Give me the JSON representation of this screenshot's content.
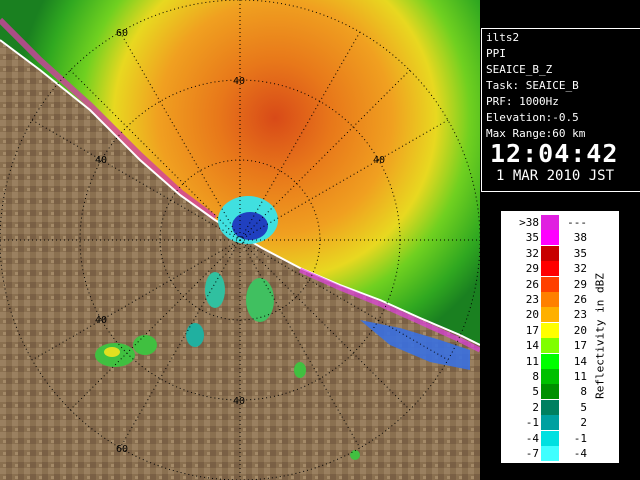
{
  "radar": {
    "range_ring_labels": [
      "40",
      "40",
      "40",
      "40",
      "40",
      "60",
      "60"
    ],
    "colors": {
      "land": "#8a7050",
      "sea_background": "#5aa838",
      "echo_core": "#e87a10",
      "coastline": "#ffffff"
    }
  },
  "info": {
    "site": "ilts2",
    "mode": "PPI",
    "product": "SEAICE_B_Z",
    "task": "Task: SEAICE_B",
    "prf": "PRF: 1000Hz",
    "elevation": "Elevation:-0.5",
    "max_range": "Max Range:60 km",
    "time": "12:04:42",
    "date": " 1 MAR 2010 JST"
  },
  "legend": {
    "title": "Reflectivity in dBZ",
    "rows": [
      {
        "min": ">38",
        "max": "---",
        "color": "#e020e0"
      },
      {
        "min": "35",
        "max": "38",
        "color": "#ff00ff"
      },
      {
        "min": "32",
        "max": "35",
        "color": "#c80000"
      },
      {
        "min": "29",
        "max": "32",
        "color": "#ff0000"
      },
      {
        "min": "26",
        "max": "29",
        "color": "#ff4000"
      },
      {
        "min": "23",
        "max": "26",
        "color": "#ff8000"
      },
      {
        "min": "20",
        "max": "23",
        "color": "#ffb000"
      },
      {
        "min": "17",
        "max": "20",
        "color": "#ffff00"
      },
      {
        "min": "14",
        "max": "17",
        "color": "#80ff00"
      },
      {
        "min": "11",
        "max": "14",
        "color": "#00ff00"
      },
      {
        "min": "8",
        "max": "11",
        "color": "#00c000"
      },
      {
        "min": "5",
        "max": "8",
        "color": "#009000"
      },
      {
        "min": "2",
        "max": "5",
        "color": "#008060"
      },
      {
        "min": "-1",
        "max": "2",
        "color": "#00a0a0"
      },
      {
        "min": "-4",
        "max": "-1",
        "color": "#00e0e0"
      },
      {
        "min": "-7",
        "max": "-4",
        "color": "#40ffff"
      }
    ]
  }
}
